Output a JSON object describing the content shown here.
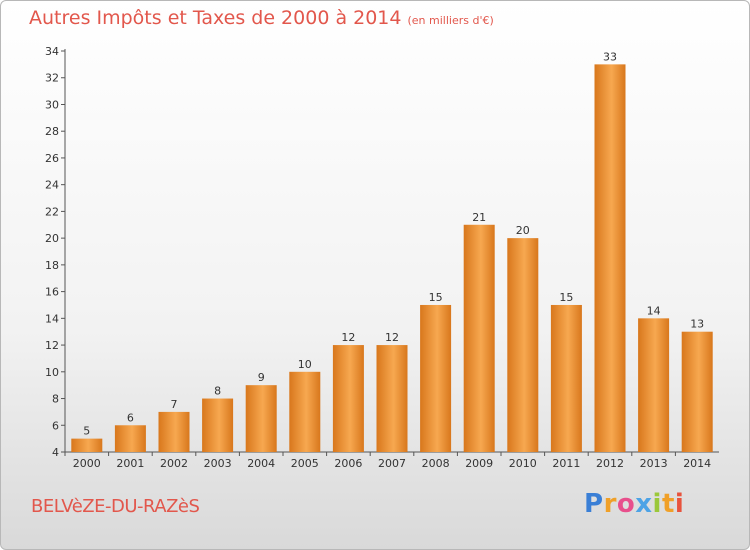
{
  "title": "Autres Impôts et Taxes de 2000 à 2014",
  "title_unit": "(en milliers d'€)",
  "footer_name": "BELVèZE-DU-RAZèS",
  "logo": {
    "text": "Proxiti",
    "letters": [
      {
        "ch": "P",
        "color": "#3a7fd6"
      },
      {
        "ch": "r",
        "color": "#f0a028"
      },
      {
        "ch": "o",
        "color": "#e84f8c"
      },
      {
        "ch": "x",
        "color": "#4da3e6"
      },
      {
        "ch": "i",
        "color": "#9bc83a"
      },
      {
        "ch": "t",
        "color": "#f0a028"
      },
      {
        "ch": "i",
        "color": "#e8533d"
      }
    ]
  },
  "colors": {
    "title": "#e2574c",
    "bar_light": "#f7a850",
    "bar_dark": "#d8771c",
    "axis": "#555555"
  },
  "chart_data": {
    "type": "bar",
    "categories": [
      "2000",
      "2001",
      "2002",
      "2003",
      "2004",
      "2005",
      "2006",
      "2007",
      "2008",
      "2009",
      "2010",
      "2011",
      "2012",
      "2013",
      "2014"
    ],
    "values": [
      5,
      6,
      7,
      8,
      9,
      10,
      12,
      12,
      15,
      21,
      20,
      15,
      33,
      14,
      13
    ],
    "ylim": [
      4,
      34
    ],
    "yticks": [
      4,
      6,
      8,
      10,
      12,
      14,
      16,
      18,
      20,
      22,
      24,
      26,
      28,
      30,
      32,
      34
    ],
    "grid": false,
    "xlabel": "",
    "ylabel": ""
  }
}
